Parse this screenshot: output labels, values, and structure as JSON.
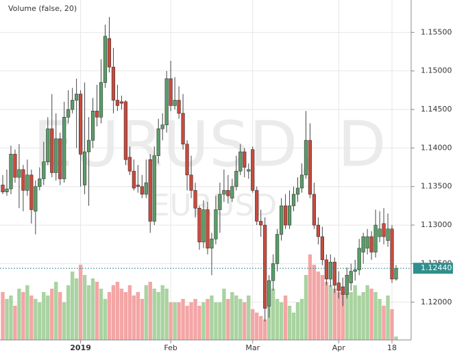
{
  "chart_data": {
    "type": "candlestick",
    "indicator_label": "Volume (false, 20)",
    "watermark": {
      "symbol_interval": "EURUSD, D",
      "symbol": "EURUSD"
    },
    "categories": [
      null,
      null,
      null,
      null,
      null,
      null,
      null,
      null,
      null,
      null,
      null,
      null,
      null,
      null,
      null,
      null,
      null,
      null,
      null,
      "2019",
      null,
      null,
      null,
      null,
      null,
      null,
      null,
      null,
      null,
      null,
      null,
      null,
      null,
      null,
      null,
      null,
      null,
      null,
      null,
      null,
      null,
      "Feb",
      null,
      null,
      null,
      null,
      null,
      null,
      null,
      null,
      null,
      null,
      null,
      null,
      null,
      null,
      null,
      null,
      null,
      null,
      null,
      "Mar",
      null,
      null,
      null,
      null,
      null,
      null,
      null,
      null,
      null,
      null,
      null,
      null,
      null,
      null,
      null,
      null,
      null,
      null,
      null,
      null,
      "Apr",
      null,
      null,
      null,
      null,
      null,
      null,
      null,
      null,
      null,
      null,
      null,
      null,
      "18",
      null
    ],
    "open": [
      1.1352,
      1.1343,
      1.1347,
      1.1392,
      1.1362,
      1.1372,
      1.1345,
      1.1365,
      1.1318,
      1.135,
      1.136,
      1.1382,
      1.1425,
      1.1368,
      1.1412,
      1.136,
      1.144,
      1.145,
      1.1462,
      1.147,
      1.1352,
      1.1395,
      1.141,
      1.1448,
      1.144,
      1.1485,
      1.1542,
      1.1505,
      1.1462,
      1.146,
      1.146,
      1.1388,
      1.137,
      1.1352,
      1.135,
      1.134,
      1.1385,
      1.1305,
      1.139,
      1.1425,
      1.143,
      1.149,
      1.1455,
      1.1462,
      1.1445,
      1.1405,
      1.1365,
      1.1345,
      1.1322,
      1.1278,
      1.132,
      1.127,
      1.1282,
      1.132,
      1.134,
      1.1345,
      1.1335,
      1.135,
      1.137,
      1.1395,
      1.137,
      1.1398,
      1.1345,
      1.1305,
      1.13,
      1.1195,
      1.1228,
      1.125,
      1.1288,
      1.1325,
      1.13,
      1.1325,
      1.134,
      1.1348,
      1.1365,
      1.141,
      1.134,
      1.13,
      1.1285,
      1.1255,
      1.123,
      1.1252,
      1.1225,
      1.122,
      1.121,
      1.1225,
      1.124,
      1.1242,
      1.1265,
      1.127,
      1.1285,
      1.1265,
      1.1285,
      1.1302,
      1.128,
      1.1295,
      1.123
    ],
    "high": [
      1.1365,
      1.1372,
      1.1403,
      1.1398,
      1.1405,
      1.1378,
      1.1385,
      1.1372,
      1.1358,
      1.1375,
      1.1408,
      1.144,
      1.147,
      1.1445,
      1.142,
      1.146,
      1.1475,
      1.1478,
      1.149,
      1.1475,
      1.1485,
      1.144,
      1.1465,
      1.1482,
      1.1515,
      1.156,
      1.157,
      1.153,
      1.1482,
      1.1468,
      1.1462,
      1.1402,
      1.1385,
      1.1378,
      1.1365,
      1.1385,
      1.1392,
      1.1402,
      1.1438,
      1.1445,
      1.15,
      1.1513,
      1.1492,
      1.148,
      1.147,
      1.141,
      1.139,
      1.1355,
      1.1325,
      1.1332,
      1.133,
      1.129,
      1.1338,
      1.1355,
      1.1372,
      1.1365,
      1.136,
      1.139,
      1.1405,
      1.14,
      1.138,
      1.1402,
      1.135,
      1.132,
      1.131,
      1.1235,
      1.1262,
      1.1295,
      1.1335,
      1.134,
      1.1345,
      1.135,
      1.1362,
      1.138,
      1.1448,
      1.1432,
      1.1355,
      1.131,
      1.1298,
      1.1262,
      1.1262,
      1.1258,
      1.124,
      1.1232,
      1.1245,
      1.125,
      1.1255,
      1.1282,
      1.129,
      1.1295,
      1.1292,
      1.132,
      1.1318,
      1.1322,
      1.1315,
      1.13,
      1.1248
    ],
    "low": [
      1.134,
      1.1338,
      1.134,
      1.1355,
      1.1322,
      1.1318,
      1.1338,
      1.1302,
      1.1288,
      1.1345,
      1.1352,
      1.1378,
      1.1362,
      1.1358,
      1.1352,
      1.1355,
      1.1432,
      1.1445,
      1.14,
      1.135,
      1.134,
      1.1325,
      1.14,
      1.1428,
      1.1432,
      1.1478,
      1.1498,
      1.1445,
      1.1448,
      1.145,
      1.1378,
      1.1365,
      1.1345,
      1.1342,
      1.1335,
      1.1335,
      1.129,
      1.13,
      1.138,
      1.141,
      1.142,
      1.1448,
      1.145,
      1.1438,
      1.1398,
      1.1345,
      1.1335,
      1.131,
      1.1268,
      1.127,
      1.1262,
      1.1235,
      1.1275,
      1.129,
      1.133,
      1.1328,
      1.133,
      1.1345,
      1.1365,
      1.1362,
      1.136,
      1.1342,
      1.13,
      1.1285,
      1.1175,
      1.118,
      1.1215,
      1.124,
      1.128,
      1.1295,
      1.1295,
      1.1318,
      1.133,
      1.1342,
      1.136,
      1.1335,
      1.1295,
      1.1275,
      1.1248,
      1.1222,
      1.122,
      1.1212,
      1.1205,
      1.1195,
      1.1205,
      1.1215,
      1.1228,
      1.1235,
      1.125,
      1.1262,
      1.1255,
      1.1258,
      1.1278,
      1.1275,
      1.1272,
      1.1225,
      1.1228
    ],
    "close": [
      1.1343,
      1.1347,
      1.1392,
      1.1362,
      1.1372,
      1.1345,
      1.1365,
      1.132,
      1.135,
      1.136,
      1.1382,
      1.1425,
      1.1368,
      1.1412,
      1.136,
      1.144,
      1.145,
      1.1462,
      1.147,
      1.1392,
      1.1395,
      1.141,
      1.1448,
      1.144,
      1.1485,
      1.1545,
      1.1505,
      1.1462,
      1.1455,
      1.1458,
      1.1385,
      1.137,
      1.1348,
      1.135,
      1.134,
      1.1355,
      1.1305,
      1.139,
      1.1425,
      1.143,
      1.149,
      1.1455,
      1.1462,
      1.1445,
      1.1405,
      1.1365,
      1.1345,
      1.1322,
      1.1278,
      1.132,
      1.127,
      1.1282,
      1.132,
      1.134,
      1.1345,
      1.1338,
      1.135,
      1.137,
      1.1395,
      1.1375,
      1.1372,
      1.1345,
      1.1305,
      1.13,
      1.1192,
      1.1228,
      1.125,
      1.1288,
      1.1325,
      1.13,
      1.1325,
      1.134,
      1.1348,
      1.1365,
      1.141,
      1.134,
      1.13,
      1.1285,
      1.1255,
      1.123,
      1.1252,
      1.1222,
      1.1215,
      1.121,
      1.1235,
      1.124,
      1.1242,
      1.127,
      1.1285,
      1.1285,
      1.1265,
      1.13,
      1.1295,
      1.1285,
      1.1295,
      1.123,
      1.1244
    ],
    "volume": [
      70,
      60,
      65,
      50,
      75,
      70,
      80,
      65,
      60,
      55,
      70,
      65,
      75,
      85,
      70,
      55,
      80,
      100,
      90,
      110,
      95,
      80,
      90,
      85,
      75,
      60,
      70,
      80,
      85,
      75,
      70,
      80,
      65,
      70,
      60,
      80,
      85,
      75,
      70,
      80,
      75,
      55,
      55,
      55,
      60,
      50,
      55,
      60,
      50,
      55,
      60,
      65,
      55,
      55,
      75,
      60,
      70,
      65,
      60,
      55,
      65,
      45,
      40,
      35,
      30,
      50,
      75,
      60,
      55,
      65,
      50,
      40,
      55,
      60,
      95,
      125,
      110,
      100,
      95,
      85,
      80,
      75,
      70,
      70,
      75,
      70,
      80,
      65,
      70,
      80,
      75,
      70,
      60,
      50,
      65,
      45,
      5
    ],
    "up_color": "#5a9e68",
    "down_color": "#c94a3c",
    "volume_up_color": "#a9d3a0",
    "volume_down_color": "#f4a5a5",
    "vlim": [
      0,
      140
    ],
    "ylim": [
      1.1151,
      1.1592
    ],
    "yticks": [
      {
        "value": 1.12,
        "label": "1.12000"
      },
      {
        "value": 1.125,
        "label": "1.12500"
      },
      {
        "value": 1.13,
        "label": "1.13000"
      },
      {
        "value": 1.135,
        "label": "1.13500"
      },
      {
        "value": 1.14,
        "label": "1.14000"
      },
      {
        "value": 1.145,
        "label": "1.14500"
      },
      {
        "value": 1.15,
        "label": "1.15000"
      },
      {
        "value": 1.155,
        "label": "1.15500"
      }
    ],
    "last_price": {
      "value": 1.1244,
      "label": "1.12440"
    },
    "grid": true
  }
}
